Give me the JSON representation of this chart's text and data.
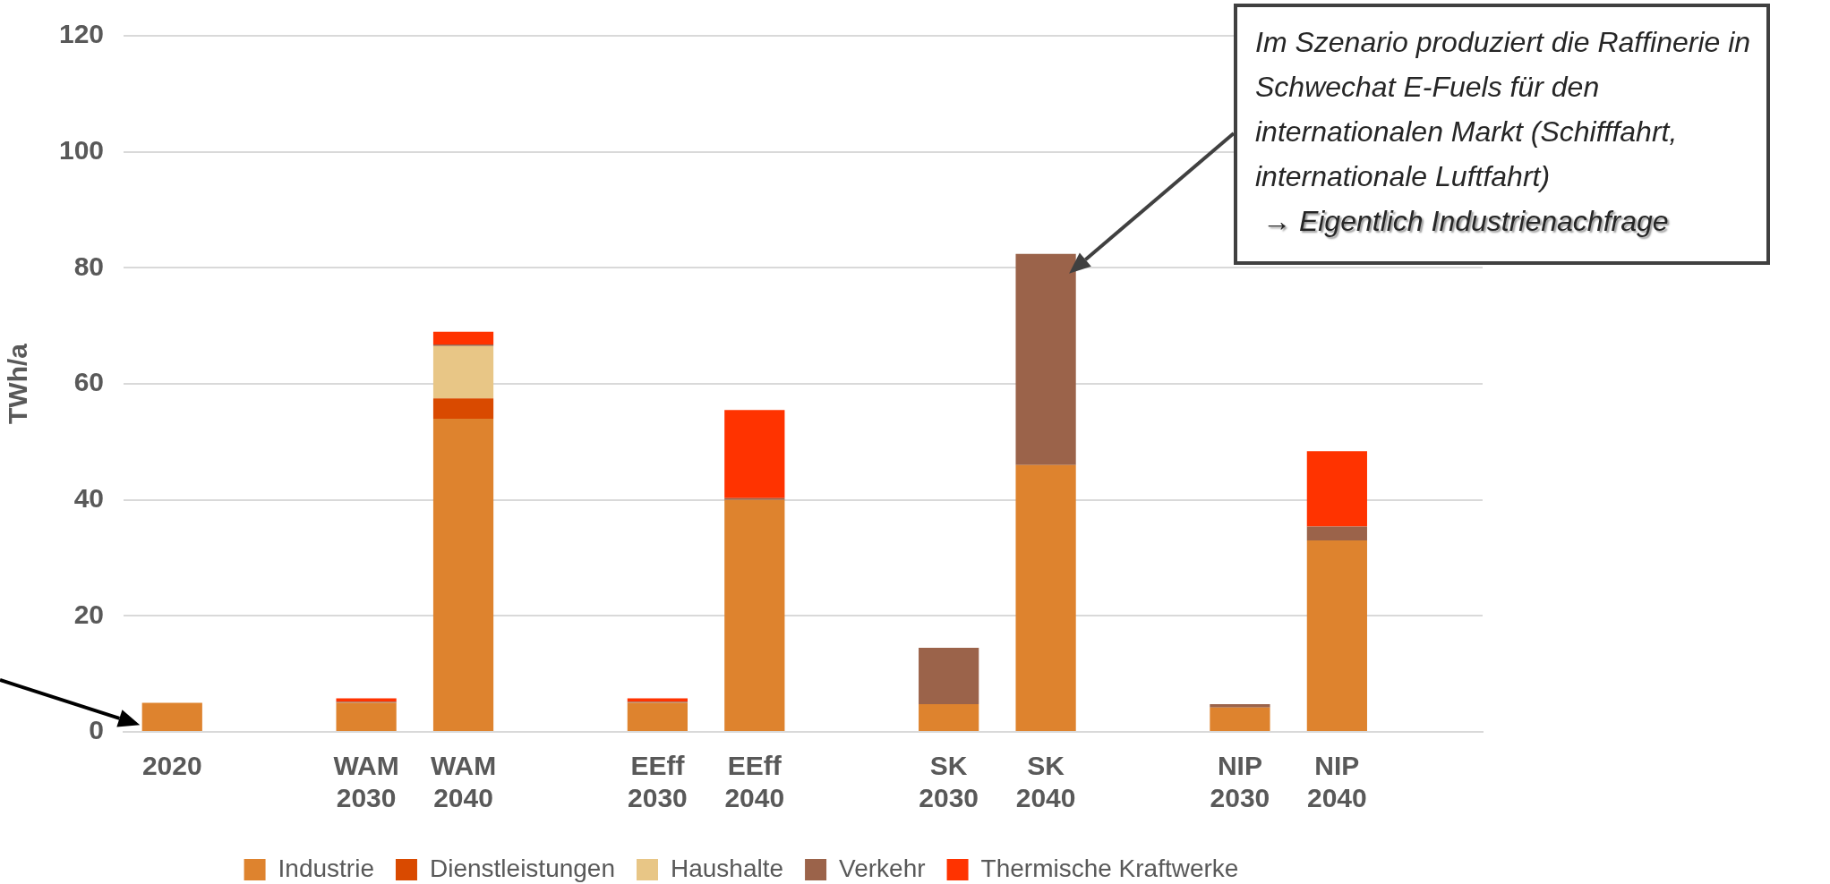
{
  "chart_data": {
    "type": "bar",
    "stacked": true,
    "ylabel": "TWh/a",
    "categories": [
      "2020",
      null,
      "WAM\n2030",
      "WAM\n2040",
      null,
      "EEff\n2030",
      "EEff\n2040",
      null,
      "SK\n2030",
      "SK\n2040",
      null,
      "NIP\n2030",
      "NIP\n2040",
      null
    ],
    "series": [
      {
        "name": "Industrie",
        "color": "#de832e",
        "values": [
          5,
          null,
          5,
          54,
          null,
          5,
          40,
          null,
          4.8,
          46,
          null,
          4.2,
          33,
          null
        ]
      },
      {
        "name": "Dienstleistungen",
        "color": "#d94a00",
        "values": [
          null,
          null,
          null,
          3.5,
          null,
          null,
          null,
          null,
          null,
          null,
          null,
          null,
          null,
          null
        ]
      },
      {
        "name": "Haushalte",
        "color": "#e8c686",
        "values": [
          null,
          null,
          null,
          9,
          null,
          null,
          null,
          null,
          null,
          null,
          null,
          null,
          null,
          null
        ]
      },
      {
        "name": "Verkehr",
        "color": "#9b634a",
        "values": [
          null,
          null,
          0.2,
          0.3,
          null,
          0.2,
          0.3,
          null,
          9.7,
          36.4,
          null,
          0.6,
          2.4,
          null
        ]
      },
      {
        "name": "Thermische Kraftwerke",
        "color": "#ff3300",
        "values": [
          null,
          null,
          0.6,
          2.2,
          null,
          0.6,
          15.2,
          null,
          null,
          null,
          null,
          null,
          13,
          null
        ]
      }
    ],
    "ylim": [
      0,
      120
    ],
    "yticks": [
      0,
      20,
      40,
      60,
      80,
      100,
      120
    ],
    "grid": "y",
    "legend": "bottom",
    "annotations": [
      "Im Szenario produziert die Raffinerie in\nSchwechat E-Fuels für den\ninternationalen Markt (Schifffahrt,\ninternationale Luftfahrt)\n→ Eigentlich Industrienachfrage"
    ]
  }
}
